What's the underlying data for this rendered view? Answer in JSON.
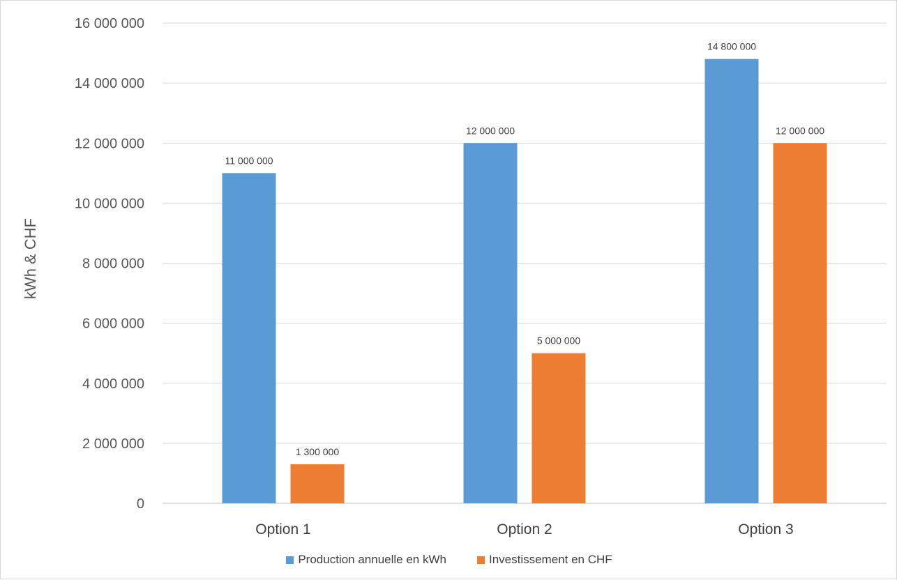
{
  "chart_data": {
    "type": "bar",
    "title": "",
    "xlabel": "",
    "ylabel": "kWh & CHF",
    "categories": [
      "Option 1",
      "Option 2",
      "Option 3"
    ],
    "series": [
      {
        "name": "Production annuelle en kWh",
        "color": "#5B9BD5",
        "values": [
          11000000,
          12000000,
          14800000
        ],
        "labels": [
          "11 000 000",
          "12 000 000",
          "14 800 000"
        ]
      },
      {
        "name": "Investissement en CHF",
        "color": "#ED7D31",
        "values": [
          1300000,
          5000000,
          12000000
        ],
        "labels": [
          "1 300 000",
          "5 000 000",
          "12 000 000"
        ]
      }
    ],
    "ylim": [
      0,
      16000000
    ],
    "yticks": [
      0,
      2000000,
      4000000,
      6000000,
      8000000,
      10000000,
      12000000,
      14000000,
      16000000
    ],
    "ytick_labels": [
      "0",
      "2 000 000",
      "4 000 000",
      "6 000 000",
      "8 000 000",
      "10 000 000",
      "12 000 000",
      "14 000 000",
      "16 000 000"
    ],
    "grid": true,
    "legend_position": "bottom"
  }
}
